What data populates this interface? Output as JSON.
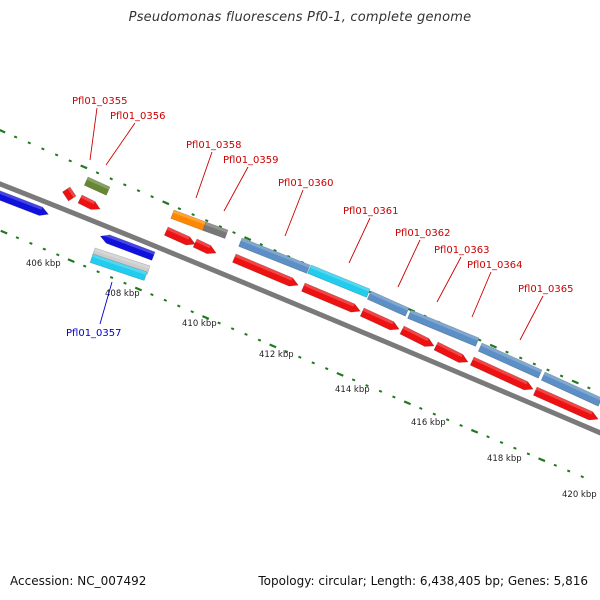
{
  "title": "Pseudomonas fluorescens Pf0-1, complete genome",
  "footer": {
    "accession": "Accession: NC_007492",
    "summary": "Topology: circular; Length: 6,438,405 bp; Genes: 5,816"
  },
  "colors": {
    "backbone": "#7a7a7a",
    "tick": "#1f7a1f",
    "tick_label": "#222222",
    "forward_gene_label": "#cc0000",
    "reverse_gene_label": "#0000cc",
    "feature_red": "#ee1111",
    "feature_steel": "#5b8fc5",
    "feature_cyan": "#22ccee",
    "feature_blue": "#1111dd",
    "feature_olive": "#668833",
    "feature_orange": "#ff8800",
    "feature_gray": "#777777",
    "feature_silver": "#cccccc"
  },
  "scale": {
    "unit": "kbp",
    "tick_labels": [
      "406 kbp",
      "408 kbp",
      "410 kbp",
      "412 kbp",
      "414 kbp",
      "416 kbp",
      "418 kbp",
      "420 kbp"
    ]
  },
  "gene_labels": [
    {
      "text": "Pfl01_0355",
      "strand": "forward"
    },
    {
      "text": "Pfl01_0356",
      "strand": "forward"
    },
    {
      "text": "Pfl01_0357",
      "strand": "reverse"
    },
    {
      "text": "Pfl01_0358",
      "strand": "forward"
    },
    {
      "text": "Pfl01_0359",
      "strand": "forward"
    },
    {
      "text": "Pfl01_0360",
      "strand": "forward"
    },
    {
      "text": "Pfl01_0361",
      "strand": "forward"
    },
    {
      "text": "Pfl01_0362",
      "strand": "forward"
    },
    {
      "text": "Pfl01_0363",
      "strand": "forward"
    },
    {
      "text": "Pfl01_0364",
      "strand": "forward"
    },
    {
      "text": "Pfl01_0365",
      "strand": "forward"
    }
  ]
}
